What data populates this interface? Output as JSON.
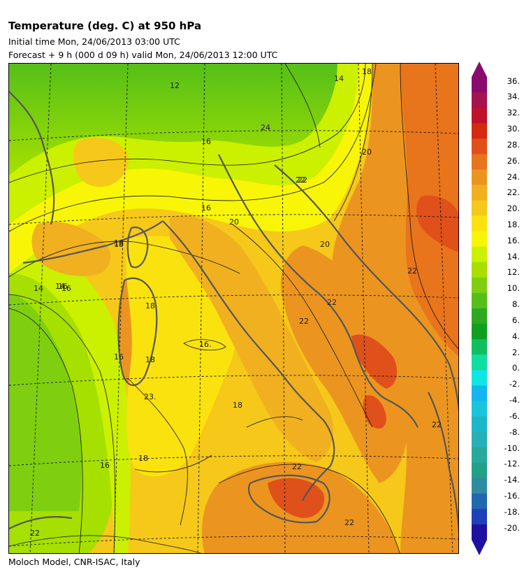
{
  "header": {
    "title": "Temperature (deg. C) at 950 hPa",
    "initial_time": "Initial time  Mon, 24/06/2013  03:00 UTC",
    "forecast": "Forecast  +   9 h  (000 d 09 h)  valid Mon, 24/06/2013 12:00 UTC"
  },
  "footer": {
    "credit": "Moloch Model, CNR-ISAC, Italy"
  },
  "colorbar": {
    "labels": [
      "36.",
      "34.",
      "32.",
      "30.",
      "28.",
      "26.",
      "24.",
      "22.",
      "20.",
      "18.",
      "16.",
      "14.",
      "12.",
      "10.",
      "8.",
      "6.",
      "4.",
      "2.",
      "0.",
      "-2.",
      "-4.",
      "-6.",
      "-8.",
      "-10.",
      "-12.",
      "-14.",
      "-16.",
      "-18.",
      "-20."
    ],
    "colors": [
      "#8b0a6e",
      "#a51250",
      "#c0102a",
      "#d42a0f",
      "#e0501a",
      "#e8741c",
      "#eb9520",
      "#f0b020",
      "#f5c81a",
      "#fae20e",
      "#f8f506",
      "#cbf000",
      "#a5e000",
      "#7fcf10",
      "#55bf18",
      "#2da823",
      "#10a01e",
      "#10c060",
      "#10dda0",
      "#10e5e5",
      "#15b5ee",
      "#1ac4dc",
      "#1db8c8",
      "#26b0b8",
      "#2aa89c",
      "#25a088",
      "#2e8ca0",
      "#2068b0",
      "#1e40b8",
      "#2010a0"
    ]
  },
  "map": {
    "contour_labels": [
      "14",
      "16",
      "18",
      "20",
      "22",
      "24",
      "12",
      "14",
      "16",
      "18",
      "20",
      "22",
      "16",
      "18",
      "20",
      "22",
      "16",
      "18",
      "16.",
      "23.",
      "18",
      "16",
      "22",
      "18",
      "22",
      "22",
      "16",
      "18",
      "22",
      "22",
      "14",
      "22"
    ]
  }
}
